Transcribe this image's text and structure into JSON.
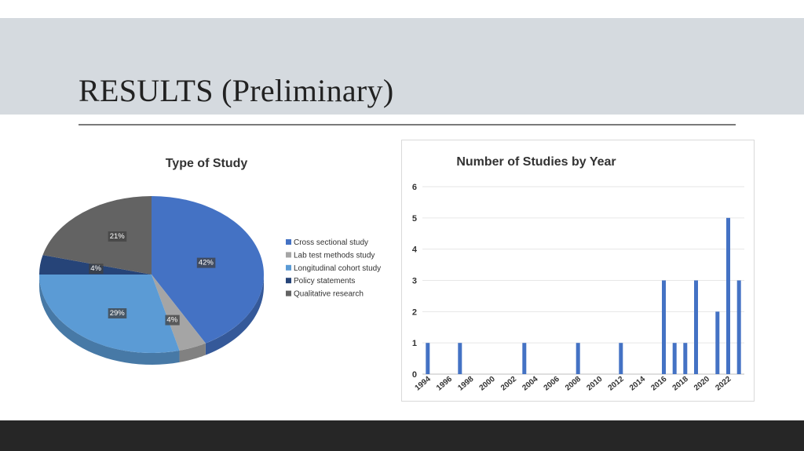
{
  "slide": {
    "title": "RESULTS (Preliminary)"
  },
  "colors": {
    "title_band": "#d5dadf",
    "footer": "#262626",
    "bar": "#4472c4"
  },
  "chart_data": [
    {
      "type": "pie",
      "title": "Type of Study",
      "legend_position": "right",
      "categories": [
        "Cross sectional study",
        "Lab test methods study",
        "Longitudinal cohort study",
        "Policy statements",
        "Qualitative research"
      ],
      "values": [
        42,
        4,
        29,
        4,
        21
      ],
      "labels": [
        "42%",
        "4%",
        "29%",
        "4%",
        "21%"
      ],
      "colors": [
        "#4472c4",
        "#a5a5a5",
        "#5b9bd5",
        "#264478",
        "#636363"
      ]
    },
    {
      "type": "bar",
      "title": "Number of Studies by Year",
      "x": [
        1994,
        1997,
        2003,
        2008,
        2012,
        2016,
        2017,
        2018,
        2019,
        2021,
        2022,
        2023
      ],
      "values": [
        1,
        1,
        1,
        1,
        1,
        3,
        1,
        1,
        3,
        2,
        5,
        3
      ],
      "x_tick_labels": [
        "1994",
        "1996",
        "1998",
        "2000",
        "2002",
        "2004",
        "2006",
        "2008",
        "2010",
        "2012",
        "2014",
        "2016",
        "2018",
        "2020",
        "2022"
      ],
      "y_tick_labels": [
        "0",
        "1",
        "2",
        "3",
        "4",
        "5",
        "6"
      ],
      "ylim": [
        0,
        6
      ],
      "xlim": [
        1994,
        2023
      ],
      "grid": true,
      "legend": "none"
    }
  ]
}
